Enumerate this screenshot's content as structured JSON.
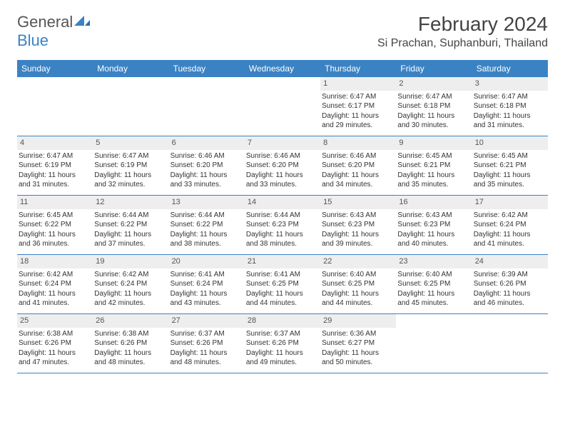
{
  "brand": {
    "general": "General",
    "blue": "Blue"
  },
  "title": "February 2024",
  "location": "Si Prachan, Suphanburi, Thailand",
  "colors": {
    "accent": "#3b82c4",
    "header_text": "#ffffff",
    "daynum_bg": "#eeeeee",
    "text": "#333333",
    "background": "#ffffff"
  },
  "day_headers": [
    "Sunday",
    "Monday",
    "Tuesday",
    "Wednesday",
    "Thursday",
    "Friday",
    "Saturday"
  ],
  "layout": {
    "columns": 7,
    "rows": 5,
    "cell_fontsize": 10,
    "header_fontsize": 12,
    "title_fontsize": 28,
    "location_fontsize": 16
  },
  "weeks": [
    [
      {
        "empty": true
      },
      {
        "empty": true
      },
      {
        "empty": true
      },
      {
        "empty": true
      },
      {
        "num": "1",
        "sunrise": "Sunrise: 6:47 AM",
        "sunset": "Sunset: 6:17 PM",
        "daylight1": "Daylight: 11 hours",
        "daylight2": "and 29 minutes."
      },
      {
        "num": "2",
        "sunrise": "Sunrise: 6:47 AM",
        "sunset": "Sunset: 6:18 PM",
        "daylight1": "Daylight: 11 hours",
        "daylight2": "and 30 minutes."
      },
      {
        "num": "3",
        "sunrise": "Sunrise: 6:47 AM",
        "sunset": "Sunset: 6:18 PM",
        "daylight1": "Daylight: 11 hours",
        "daylight2": "and 31 minutes."
      }
    ],
    [
      {
        "num": "4",
        "sunrise": "Sunrise: 6:47 AM",
        "sunset": "Sunset: 6:19 PM",
        "daylight1": "Daylight: 11 hours",
        "daylight2": "and 31 minutes."
      },
      {
        "num": "5",
        "sunrise": "Sunrise: 6:47 AM",
        "sunset": "Sunset: 6:19 PM",
        "daylight1": "Daylight: 11 hours",
        "daylight2": "and 32 minutes."
      },
      {
        "num": "6",
        "sunrise": "Sunrise: 6:46 AM",
        "sunset": "Sunset: 6:20 PM",
        "daylight1": "Daylight: 11 hours",
        "daylight2": "and 33 minutes."
      },
      {
        "num": "7",
        "sunrise": "Sunrise: 6:46 AM",
        "sunset": "Sunset: 6:20 PM",
        "daylight1": "Daylight: 11 hours",
        "daylight2": "and 33 minutes."
      },
      {
        "num": "8",
        "sunrise": "Sunrise: 6:46 AM",
        "sunset": "Sunset: 6:20 PM",
        "daylight1": "Daylight: 11 hours",
        "daylight2": "and 34 minutes."
      },
      {
        "num": "9",
        "sunrise": "Sunrise: 6:45 AM",
        "sunset": "Sunset: 6:21 PM",
        "daylight1": "Daylight: 11 hours",
        "daylight2": "and 35 minutes."
      },
      {
        "num": "10",
        "sunrise": "Sunrise: 6:45 AM",
        "sunset": "Sunset: 6:21 PM",
        "daylight1": "Daylight: 11 hours",
        "daylight2": "and 35 minutes."
      }
    ],
    [
      {
        "num": "11",
        "sunrise": "Sunrise: 6:45 AM",
        "sunset": "Sunset: 6:22 PM",
        "daylight1": "Daylight: 11 hours",
        "daylight2": "and 36 minutes."
      },
      {
        "num": "12",
        "sunrise": "Sunrise: 6:44 AM",
        "sunset": "Sunset: 6:22 PM",
        "daylight1": "Daylight: 11 hours",
        "daylight2": "and 37 minutes."
      },
      {
        "num": "13",
        "sunrise": "Sunrise: 6:44 AM",
        "sunset": "Sunset: 6:22 PM",
        "daylight1": "Daylight: 11 hours",
        "daylight2": "and 38 minutes."
      },
      {
        "num": "14",
        "sunrise": "Sunrise: 6:44 AM",
        "sunset": "Sunset: 6:23 PM",
        "daylight1": "Daylight: 11 hours",
        "daylight2": "and 38 minutes."
      },
      {
        "num": "15",
        "sunrise": "Sunrise: 6:43 AM",
        "sunset": "Sunset: 6:23 PM",
        "daylight1": "Daylight: 11 hours",
        "daylight2": "and 39 minutes."
      },
      {
        "num": "16",
        "sunrise": "Sunrise: 6:43 AM",
        "sunset": "Sunset: 6:23 PM",
        "daylight1": "Daylight: 11 hours",
        "daylight2": "and 40 minutes."
      },
      {
        "num": "17",
        "sunrise": "Sunrise: 6:42 AM",
        "sunset": "Sunset: 6:24 PM",
        "daylight1": "Daylight: 11 hours",
        "daylight2": "and 41 minutes."
      }
    ],
    [
      {
        "num": "18",
        "sunrise": "Sunrise: 6:42 AM",
        "sunset": "Sunset: 6:24 PM",
        "daylight1": "Daylight: 11 hours",
        "daylight2": "and 41 minutes."
      },
      {
        "num": "19",
        "sunrise": "Sunrise: 6:42 AM",
        "sunset": "Sunset: 6:24 PM",
        "daylight1": "Daylight: 11 hours",
        "daylight2": "and 42 minutes."
      },
      {
        "num": "20",
        "sunrise": "Sunrise: 6:41 AM",
        "sunset": "Sunset: 6:24 PM",
        "daylight1": "Daylight: 11 hours",
        "daylight2": "and 43 minutes."
      },
      {
        "num": "21",
        "sunrise": "Sunrise: 6:41 AM",
        "sunset": "Sunset: 6:25 PM",
        "daylight1": "Daylight: 11 hours",
        "daylight2": "and 44 minutes."
      },
      {
        "num": "22",
        "sunrise": "Sunrise: 6:40 AM",
        "sunset": "Sunset: 6:25 PM",
        "daylight1": "Daylight: 11 hours",
        "daylight2": "and 44 minutes."
      },
      {
        "num": "23",
        "sunrise": "Sunrise: 6:40 AM",
        "sunset": "Sunset: 6:25 PM",
        "daylight1": "Daylight: 11 hours",
        "daylight2": "and 45 minutes."
      },
      {
        "num": "24",
        "sunrise": "Sunrise: 6:39 AM",
        "sunset": "Sunset: 6:26 PM",
        "daylight1": "Daylight: 11 hours",
        "daylight2": "and 46 minutes."
      }
    ],
    [
      {
        "num": "25",
        "sunrise": "Sunrise: 6:38 AM",
        "sunset": "Sunset: 6:26 PM",
        "daylight1": "Daylight: 11 hours",
        "daylight2": "and 47 minutes."
      },
      {
        "num": "26",
        "sunrise": "Sunrise: 6:38 AM",
        "sunset": "Sunset: 6:26 PM",
        "daylight1": "Daylight: 11 hours",
        "daylight2": "and 48 minutes."
      },
      {
        "num": "27",
        "sunrise": "Sunrise: 6:37 AM",
        "sunset": "Sunset: 6:26 PM",
        "daylight1": "Daylight: 11 hours",
        "daylight2": "and 48 minutes."
      },
      {
        "num": "28",
        "sunrise": "Sunrise: 6:37 AM",
        "sunset": "Sunset: 6:26 PM",
        "daylight1": "Daylight: 11 hours",
        "daylight2": "and 49 minutes."
      },
      {
        "num": "29",
        "sunrise": "Sunrise: 6:36 AM",
        "sunset": "Sunset: 6:27 PM",
        "daylight1": "Daylight: 11 hours",
        "daylight2": "and 50 minutes."
      },
      {
        "empty": true
      },
      {
        "empty": true
      }
    ]
  ]
}
